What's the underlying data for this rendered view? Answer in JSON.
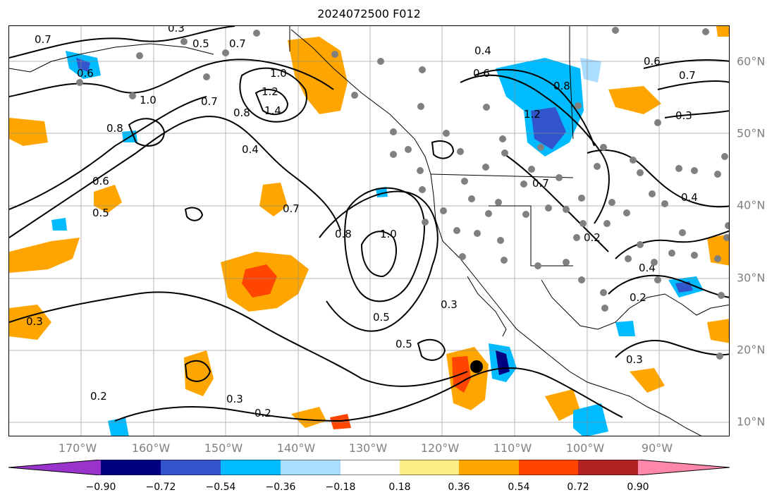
{
  "title": "2024072500 F012",
  "lon_labels": [
    "170°W",
    "160°W",
    "150°W",
    "140°W",
    "130°W",
    "120°W",
    "110°W",
    "100°W",
    "90°W"
  ],
  "lat_labels": [
    "60°N",
    "50°N",
    "40°N",
    "30°N",
    "20°N",
    "10°N"
  ],
  "colorbar": {
    "ticks": [
      "−0.90",
      "−0.72",
      "−0.54",
      "−0.36",
      "−0.18",
      "0.18",
      "0.36",
      "0.54",
      "0.72",
      "0.90"
    ],
    "colors": [
      "#9933cc",
      "#000080",
      "#3355cc",
      "#00bbff",
      "#aaddff",
      "#ffffff",
      "#ffee88",
      "#ffa500",
      "#ff4500",
      "#b22222",
      "#ff88aa"
    ]
  },
  "contour_labels": [
    "0.7",
    "0.3",
    "0.5",
    "0.7",
    "1.0",
    "1.2",
    "1.4",
    "0.7",
    "0.8",
    "0.8",
    "1.0",
    "0.6",
    "0.4",
    "0.6",
    "0.5",
    "0.8",
    "1.0",
    "0.5",
    "0.5",
    "0.3",
    "0.3",
    "0.2",
    "0.2",
    "0.3",
    "0.7",
    "0.6",
    "0.4",
    "1.2",
    "0.8",
    "0.6",
    "0.7",
    "0.3",
    "0.4",
    "0.4",
    "0.2",
    "0.2",
    "0.3",
    "0.7"
  ],
  "storm_marker": "black-dot"
}
